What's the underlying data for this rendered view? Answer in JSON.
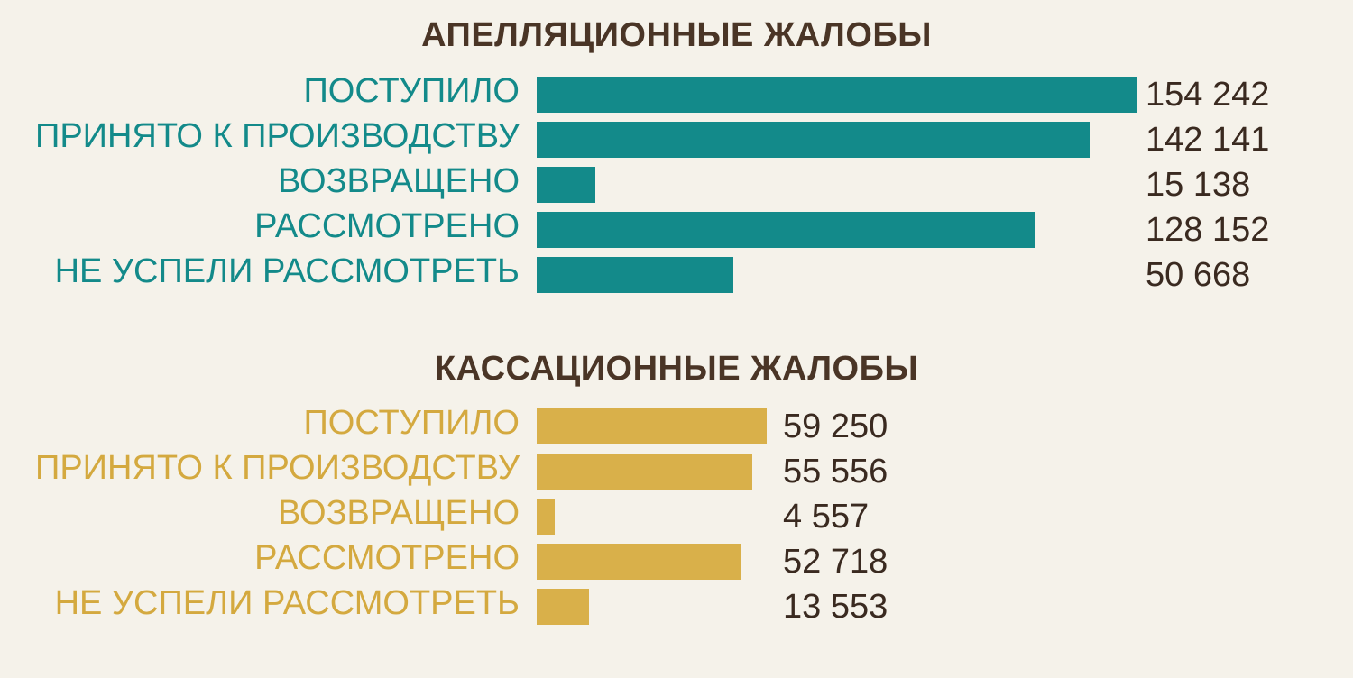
{
  "chart_data": [
    {
      "type": "bar",
      "orientation": "horizontal",
      "title": "АПЕЛЛЯЦИОННЫЕ ЖАЛОБЫ",
      "categories": [
        "ПОСТУПИЛО",
        "ПРИНЯТО К ПРОИЗВОДСТВУ",
        "ВОЗВРАЩЕНО",
        "РАССМОТРЕНО",
        "НЕ УСПЕЛИ РАССМОТРЕТЬ"
      ],
      "values": [
        154242,
        142141,
        15138,
        128152,
        50668
      ],
      "value_labels": [
        "154 242",
        "142 141",
        "15 138",
        "128 152",
        "50 668"
      ],
      "color": "#138a8a",
      "label_color": "#138a8a"
    },
    {
      "type": "bar",
      "orientation": "horizontal",
      "title": "КАССАЦИОННЫЕ ЖАЛОБЫ",
      "categories": [
        "ПОСТУПИЛО",
        "ПРИНЯТО К ПРОИЗВОДСТВУ",
        "ВОЗВРАЩЕНО",
        "РАССМОТРЕНО",
        "НЕ УСПЕЛИ РАССМОТРЕТЬ"
      ],
      "values": [
        59250,
        55556,
        4557,
        52718,
        13553
      ],
      "value_labels": [
        "59 250",
        "55 556",
        "4 557",
        "52 718",
        "13 553"
      ],
      "color": "#d9b04a",
      "label_color": "#d4a93f"
    }
  ]
}
